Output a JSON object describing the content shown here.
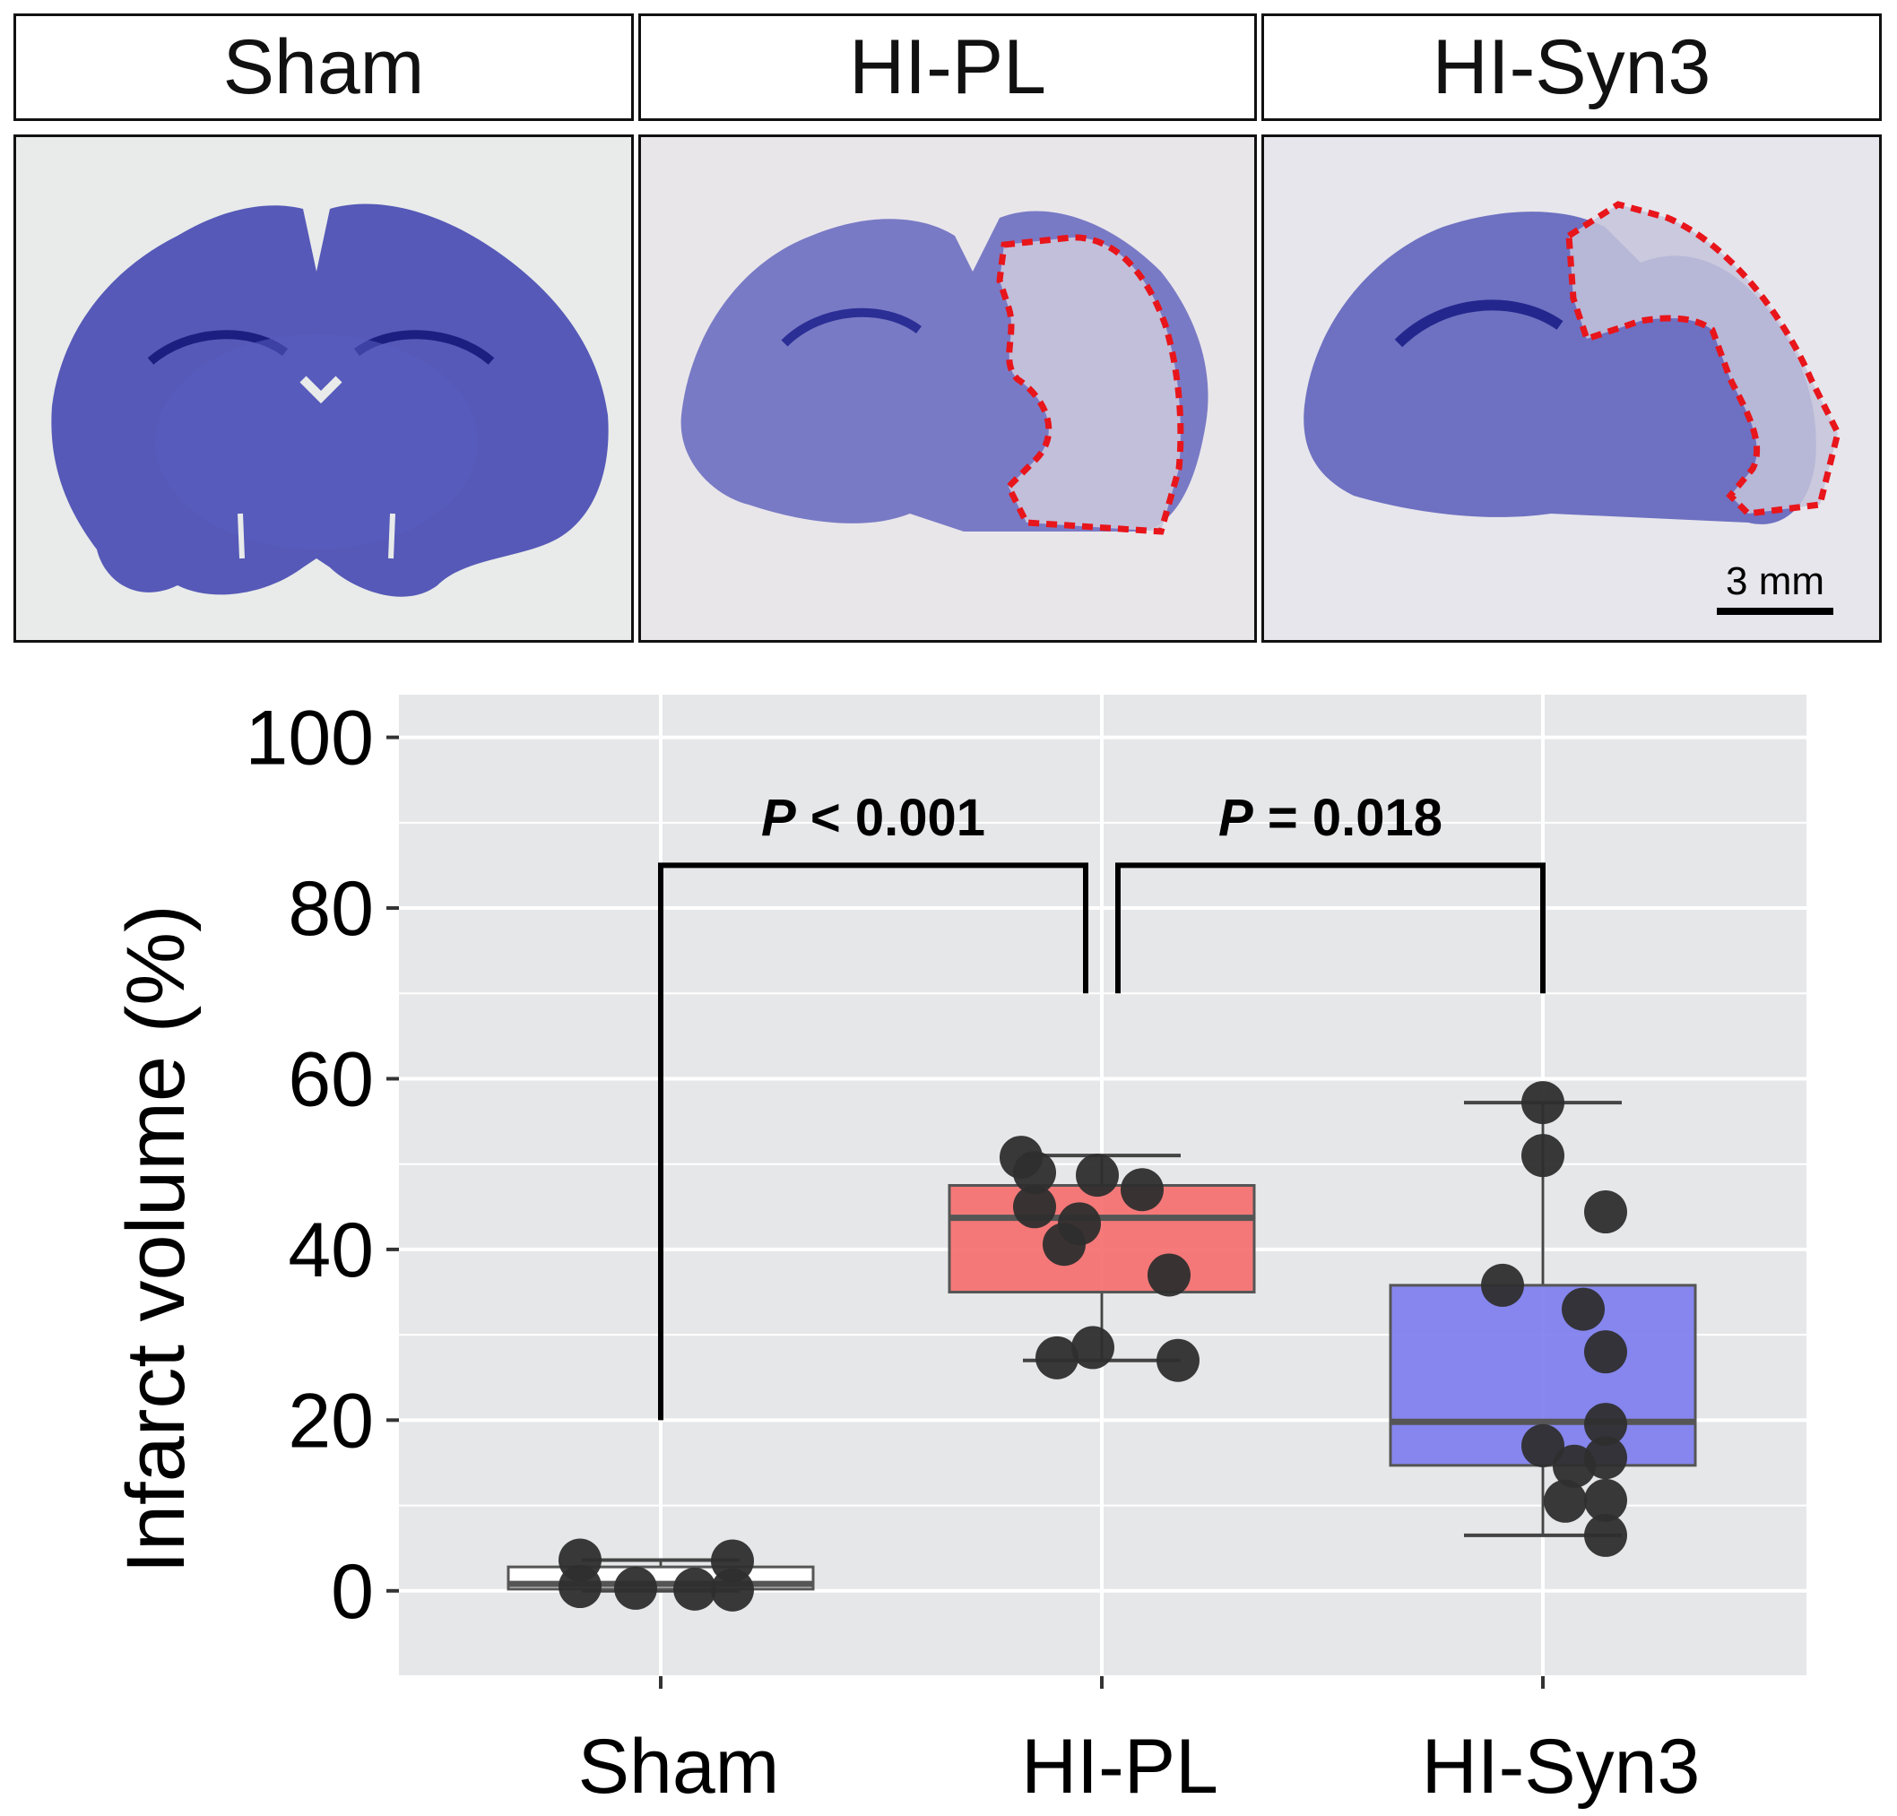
{
  "panels": {
    "headers": [
      "Sham",
      "HI-PL",
      "HI-Syn3"
    ],
    "scale_bar_label": "3 mm"
  },
  "colors": {
    "tissue_stain": "#3c3fae",
    "infarct_outline": "#e8151b",
    "panel_background": "#e9e7ec",
    "plot_background": "#e6e7e9",
    "box_sham": "#ffffff",
    "box_hi_pl": "#f56b6b",
    "box_hi_syn3": "#7b7bee",
    "points": "#2e2e2e"
  },
  "chart_data": {
    "type": "box",
    "categories": [
      "Sham",
      "HI-PL",
      "HI-Syn3"
    ],
    "ylabel": "Infarct volume (%)",
    "xlabel": "",
    "ylim": [
      -10,
      105
    ],
    "yticks": [
      0,
      20,
      40,
      60,
      80,
      100
    ],
    "grid": true,
    "boxes": [
      {
        "category": "Sham",
        "whisker_low": 0.0,
        "q1": 0.2,
        "median": 0.8,
        "q3": 2.8,
        "whisker_high": 3.6,
        "points": [
          3.6,
          3.5,
          0.5,
          0.3,
          0.1,
          0.2
        ]
      },
      {
        "category": "HI-PL",
        "whisker_low": 27.0,
        "q1": 35.0,
        "median": 43.7,
        "q3": 47.5,
        "whisker_high": 51.0,
        "points": [
          50.8,
          49.0,
          48.7,
          47.0,
          45.0,
          43.0,
          40.6,
          37.0,
          28.5,
          27.3,
          27.0
        ]
      },
      {
        "category": "HI-Syn3",
        "whisker_low": 6.5,
        "q1": 14.7,
        "median": 19.8,
        "q3": 35.8,
        "whisker_high": 57.2,
        "points": [
          57.2,
          51.0,
          44.4,
          35.8,
          33.0,
          28.0,
          19.5,
          17.0,
          15.6,
          14.6,
          10.6,
          10.5,
          6.5
        ]
      }
    ],
    "annotations": [
      {
        "from": "Sham",
        "to": "HI-PL",
        "p_symbol": "P",
        "p_rest": " < 0.001"
      },
      {
        "from": "HI-PL",
        "to": "HI-Syn3",
        "p_symbol": "P",
        "p_rest": " = 0.018"
      }
    ]
  }
}
